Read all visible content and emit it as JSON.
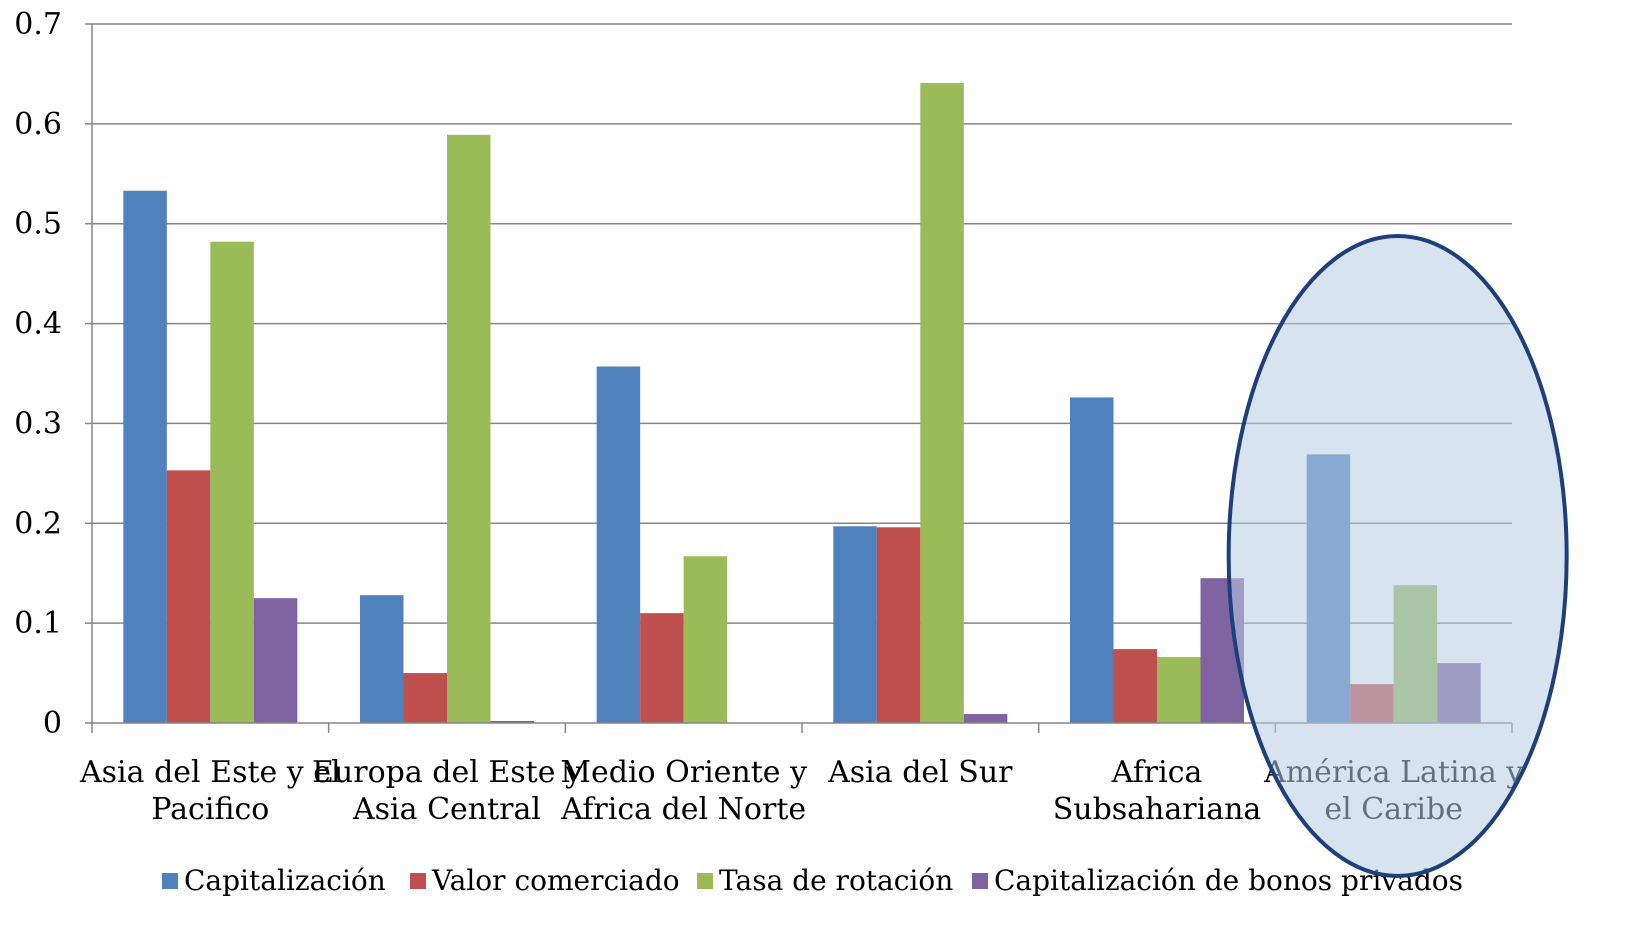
{
  "chart_data": {
    "type": "bar",
    "title": "",
    "xlabel": "",
    "ylabel": "",
    "ylim": [
      0,
      0.7
    ],
    "yticks": [
      "0",
      "0.1",
      "0.2",
      "0.3",
      "0.4",
      "0.5",
      "0.6",
      "0.7"
    ],
    "grid": true,
    "legend_position": "bottom",
    "categories": [
      [
        "Asia del Este y el",
        "Pacifico"
      ],
      [
        "Europa del Este y",
        "Asia Central"
      ],
      [
        "Medio Oriente y",
        "Africa del Norte"
      ],
      [
        "Asia del Sur"
      ],
      [
        "Africa",
        "Subsahariana"
      ],
      [
        "América Latina y",
        "el Caribe"
      ]
    ],
    "series": [
      {
        "name": "Capitalización",
        "color": "#4F81BD",
        "values": [
          0.533,
          0.128,
          0.357,
          0.197,
          0.326,
          0.269
        ]
      },
      {
        "name": "Valor comerciado",
        "color": "#C0504D",
        "values": [
          0.253,
          0.05,
          0.11,
          0.196,
          0.074,
          0.039
        ]
      },
      {
        "name": "Tasa de rotación",
        "color": "#9BBB59",
        "values": [
          0.482,
          0.589,
          0.167,
          0.641,
          0.066,
          0.138
        ]
      },
      {
        "name": "Capitalización de bonos privados",
        "color": "#8064A2",
        "values": [
          0.125,
          0.002,
          0.0,
          0.009,
          0.145,
          0.06
        ]
      }
    ],
    "highlight": {
      "category_index": 5,
      "shape": "ellipse",
      "fill": "#B8CCE4",
      "stroke": "#1F3F7A"
    }
  }
}
